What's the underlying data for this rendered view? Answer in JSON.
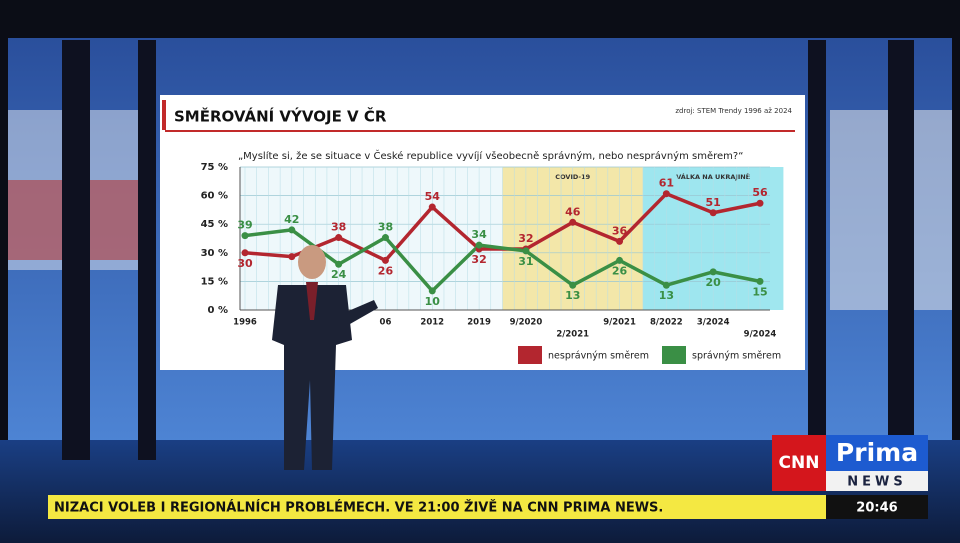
{
  "chart_data": {
    "type": "line",
    "title": "SMĚROVÁNÍ VÝVOJE V ČR",
    "source": "zdroj: STEM Trendy 1996 až 2024",
    "subtitle": "„Myslíte si, že se situace v České republice vyvíjí všeobecně správným, nebo nesprávným směrem?“",
    "categories": [
      "1996",
      null,
      null,
      "06",
      "2012",
      "2019",
      "9/2020",
      "2/2021",
      "9/2021",
      "8/2022",
      "3/2024",
      "9/2024"
    ],
    "series": [
      {
        "name": "nesprávným směrem",
        "color": "#b3262f",
        "values": [
          30,
          28,
          38,
          26,
          54,
          32,
          32,
          46,
          36,
          61,
          51,
          56
        ],
        "value_labels": [
          "30",
          null,
          "38",
          "26",
          "54",
          "32",
          "32",
          "46",
          "36",
          "61",
          "51",
          "56"
        ]
      },
      {
        "name": "správným směrem",
        "color": "#3a8f45",
        "values": [
          39,
          42,
          24,
          38,
          10,
          34,
          31,
          13,
          26,
          13,
          20,
          15
        ],
        "value_labels": [
          "39",
          "42",
          "24",
          "38",
          "10",
          "34",
          "31",
          "13",
          "26",
          "13",
          "20",
          "15"
        ]
      }
    ],
    "ylim": [
      0,
      75
    ],
    "yticks": [
      {
        "value": 0,
        "label": "0 %"
      },
      {
        "value": 15,
        "label": "15 %"
      },
      {
        "value": 30,
        "label": "30 %"
      },
      {
        "value": 45,
        "label": "45 %"
      },
      {
        "value": 60,
        "label": "60 %"
      },
      {
        "value": 75,
        "label": "75 %"
      }
    ],
    "grid": true,
    "annotations": [
      {
        "text": "COVID-19",
        "from": 6,
        "to": 8,
        "color": "#f3e49a"
      },
      {
        "text": "VÁLKA NA UKRAJINĚ",
        "from": 9,
        "to": 11,
        "color": "#8fe3ec"
      }
    ]
  },
  "broadcast": {
    "ticker": "NIZACI VOLEB I REGIONÁLNÍCH PROBLÉMECH. VE 21:00 ŽIVĚ NA CNN PRIMA NEWS.",
    "logo_cnn": "CNN",
    "logo_prima": "Prima",
    "logo_news": "NEWS",
    "clock": "20:46"
  }
}
